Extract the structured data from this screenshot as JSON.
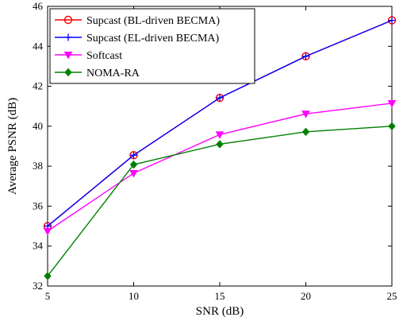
{
  "chart_data": {
    "type": "line",
    "title": "",
    "xlabel": "SNR (dB)",
    "ylabel": "Average PSNR (dB)",
    "xlim": [
      5,
      25
    ],
    "ylim": [
      32,
      46
    ],
    "x_ticks": [
      5,
      10,
      15,
      20,
      25
    ],
    "y_ticks": [
      32,
      34,
      36,
      38,
      40,
      42,
      44,
      46
    ],
    "grid": false,
    "legend_position": "top-left",
    "x": [
      5,
      10,
      15,
      20,
      25
    ],
    "series": [
      {
        "name": "Supcast (BL-driven BECMA)",
        "values": [
          35.0,
          38.55,
          41.42,
          43.5,
          45.3
        ],
        "color": "#ff0000",
        "marker": "circle"
      },
      {
        "name": "Supcast (EL-driven BECMA)",
        "values": [
          35.0,
          38.55,
          41.42,
          43.5,
          45.3
        ],
        "color": "#0000ff",
        "marker": "plus"
      },
      {
        "name": "Softcast",
        "values": [
          34.75,
          37.65,
          39.58,
          40.62,
          41.15
        ],
        "color": "#ff00ff",
        "marker": "triangle-down"
      },
      {
        "name": "NOMA-RA",
        "values": [
          32.5,
          38.08,
          39.1,
          39.72,
          40.0
        ],
        "color": "#008000",
        "marker": "diamond"
      }
    ]
  }
}
